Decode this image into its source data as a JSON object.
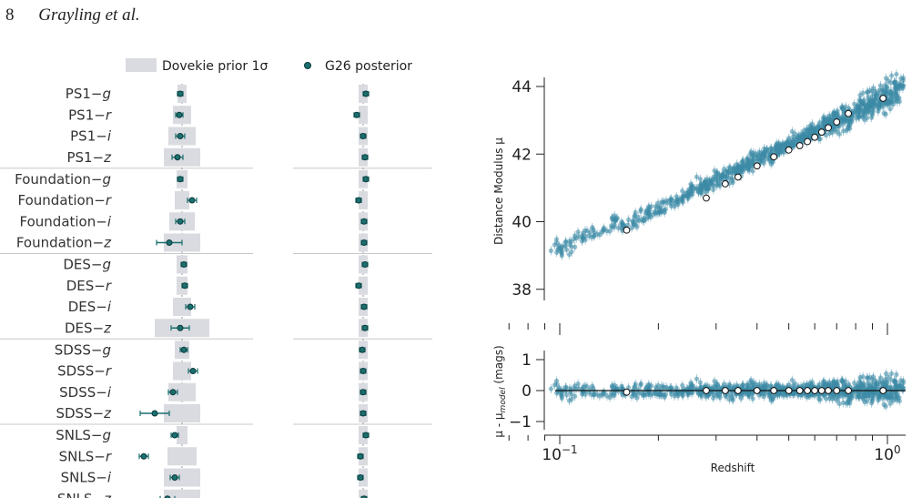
{
  "header": {
    "page_number": "8",
    "authors": "Grayling et al."
  },
  "legend": {
    "prior_label": "Dovekie prior 1σ",
    "posterior_label": "G26 posterior"
  },
  "colors": {
    "prior": "#d9dbe0",
    "posterior": "#1a6f6f",
    "posterior_edge": "#0d3b3b",
    "scatter": "#3c8aa6",
    "binned": "#ffffff",
    "separator": "#c8c8c8"
  },
  "chart_data": [
    {
      "type": "scatter",
      "panel": "left-column-1",
      "categories": [
        "PS1−g",
        "PS1−r",
        "PS1−i",
        "PS1−z",
        "Foundation−g",
        "Foundation−r",
        "Foundation−i",
        "Foundation−z",
        "DES−g",
        "DES−r",
        "DES−i",
        "DES−z",
        "SDSS−g",
        "SDSS−r",
        "SDSS−i",
        "SDSS−z",
        "SNLS−g",
        "SNLS−r",
        "SNLS−i",
        "SNLS−z"
      ],
      "groups": [
        "PS1",
        "Foundation",
        "DES",
        "SDSS",
        "SNLS"
      ],
      "prior_halfwidth": [
        0.05,
        0.1,
        0.15,
        0.2,
        0.06,
        0.08,
        0.14,
        0.2,
        0.06,
        0.06,
        0.1,
        0.3,
        0.08,
        0.1,
        0.15,
        0.2,
        0.06,
        0.16,
        0.2,
        0.2
      ],
      "posterior_value": [
        -0.02,
        -0.03,
        -0.02,
        -0.05,
        -0.02,
        0.11,
        -0.02,
        -0.14,
        0.02,
        0.03,
        0.09,
        -0.02,
        0.02,
        0.12,
        -0.1,
        -0.3,
        -0.08,
        -0.42,
        -0.08,
        -0.16
      ],
      "posterior_err": [
        0.03,
        0.04,
        0.05,
        0.06,
        0.03,
        0.05,
        0.05,
        0.14,
        0.03,
        0.03,
        0.05,
        0.1,
        0.04,
        0.05,
        0.05,
        0.16,
        0.04,
        0.05,
        0.05,
        0.08
      ]
    },
    {
      "type": "scatter",
      "panel": "left-column-2",
      "categories": [
        "PS1−g",
        "PS1−r",
        "PS1−i",
        "PS1−z",
        "Foundation−g",
        "Foundation−r",
        "Foundation−i",
        "Foundation−z",
        "DES−g",
        "DES−r",
        "DES−i",
        "DES−z",
        "SDSS−g",
        "SDSS−r",
        "SDSS−i",
        "SDSS−z",
        "SNLS−g",
        "SNLS−r",
        "SNLS−i",
        "SNLS−z"
      ],
      "prior_halfwidth": [
        0.05,
        0.05,
        0.05,
        0.05,
        0.05,
        0.05,
        0.05,
        0.05,
        0.05,
        0.05,
        0.05,
        0.05,
        0.05,
        0.05,
        0.05,
        0.05,
        0.05,
        0.05,
        0.05,
        0.05
      ],
      "posterior_value": [
        0.03,
        -0.07,
        0.0,
        0.02,
        0.03,
        -0.05,
        0.01,
        0.01,
        0.02,
        -0.05,
        0.01,
        0.02,
        -0.01,
        0.0,
        0.0,
        0.0,
        0.03,
        -0.03,
        -0.03,
        0.01
      ],
      "posterior_err": [
        0.03,
        0.03,
        0.03,
        0.03,
        0.03,
        0.03,
        0.03,
        0.03,
        0.03,
        0.03,
        0.03,
        0.03,
        0.03,
        0.03,
        0.03,
        0.03,
        0.03,
        0.03,
        0.03,
        0.03
      ]
    },
    {
      "type": "scatter",
      "panel": "hubble-diagram",
      "xscale": "log",
      "xlim": [
        0.06,
        1.15
      ],
      "ylim": [
        37.0,
        44.3
      ],
      "ylabel": "Distance Modulus μ",
      "yticks": [
        38,
        40,
        42,
        44
      ],
      "binned": {
        "z": [
          0.16,
          0.28,
          0.32,
          0.35,
          0.4,
          0.45,
          0.5,
          0.54,
          0.57,
          0.6,
          0.63,
          0.66,
          0.7,
          0.76,
          0.97
        ],
        "mu": [
          39.75,
          40.7,
          41.12,
          41.32,
          41.65,
          41.92,
          42.12,
          42.25,
          42.37,
          42.5,
          42.65,
          42.78,
          42.95,
          43.2,
          43.65
        ]
      }
    },
    {
      "type": "scatter",
      "panel": "hubble-residuals",
      "xscale": "log",
      "xlim": [
        0.06,
        1.15
      ],
      "ylim": [
        -1.3,
        1.3
      ],
      "xlabel": "Redshift",
      "ylabel": "μ - μ_model (mags)",
      "yticks": [
        1,
        0,
        -1
      ],
      "xticks": [
        "10−1",
        "100"
      ],
      "binned": {
        "z": [
          0.16,
          0.28,
          0.32,
          0.35,
          0.4,
          0.45,
          0.5,
          0.54,
          0.57,
          0.6,
          0.63,
          0.66,
          0.7,
          0.76,
          0.97
        ],
        "resid": [
          -0.05,
          0,
          0,
          0,
          0,
          0,
          0,
          0,
          0,
          0,
          0,
          0,
          0,
          0,
          0
        ]
      }
    }
  ]
}
